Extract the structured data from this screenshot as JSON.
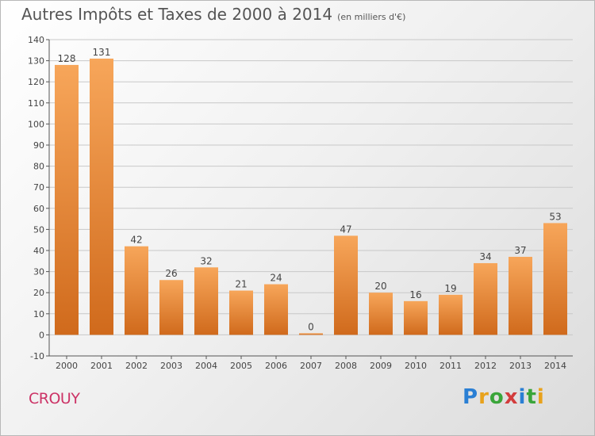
{
  "title": "Autres Impôts et Taxes de 2000 à 2014",
  "subtitle": "(en milliers d'€)",
  "commune": "CROUY",
  "logo": {
    "letters": [
      "P",
      "r",
      "o",
      "x",
      "i",
      "t",
      "i"
    ],
    "colors": [
      "#2a7fd4",
      "#e8a21c",
      "#3aa53a",
      "#d23c3c",
      "#2a7fd4",
      "#3aa53a",
      "#e8a21c"
    ]
  },
  "colors": {
    "bar_top": "#f7a65a",
    "bar_bottom": "#d06a1c",
    "grid": "#c8c8c8",
    "axis": "#555555"
  },
  "chart_data": {
    "type": "bar",
    "title": "Autres Impôts et Taxes de 2000 à 2014",
    "xlabel": "",
    "ylabel": "",
    "categories": [
      "2000",
      "2001",
      "2002",
      "2003",
      "2004",
      "2005",
      "2006",
      "2007",
      "2008",
      "2009",
      "2010",
      "2011",
      "2012",
      "2013",
      "2014"
    ],
    "values": [
      128,
      131,
      42,
      26,
      32,
      21,
      24,
      0,
      47,
      20,
      16,
      19,
      34,
      37,
      53
    ],
    "ylim": [
      -10,
      140
    ],
    "yticks": [
      -10,
      0,
      10,
      20,
      30,
      40,
      50,
      60,
      70,
      80,
      90,
      100,
      110,
      120,
      130,
      140
    ],
    "grid": true,
    "legend": "none"
  }
}
